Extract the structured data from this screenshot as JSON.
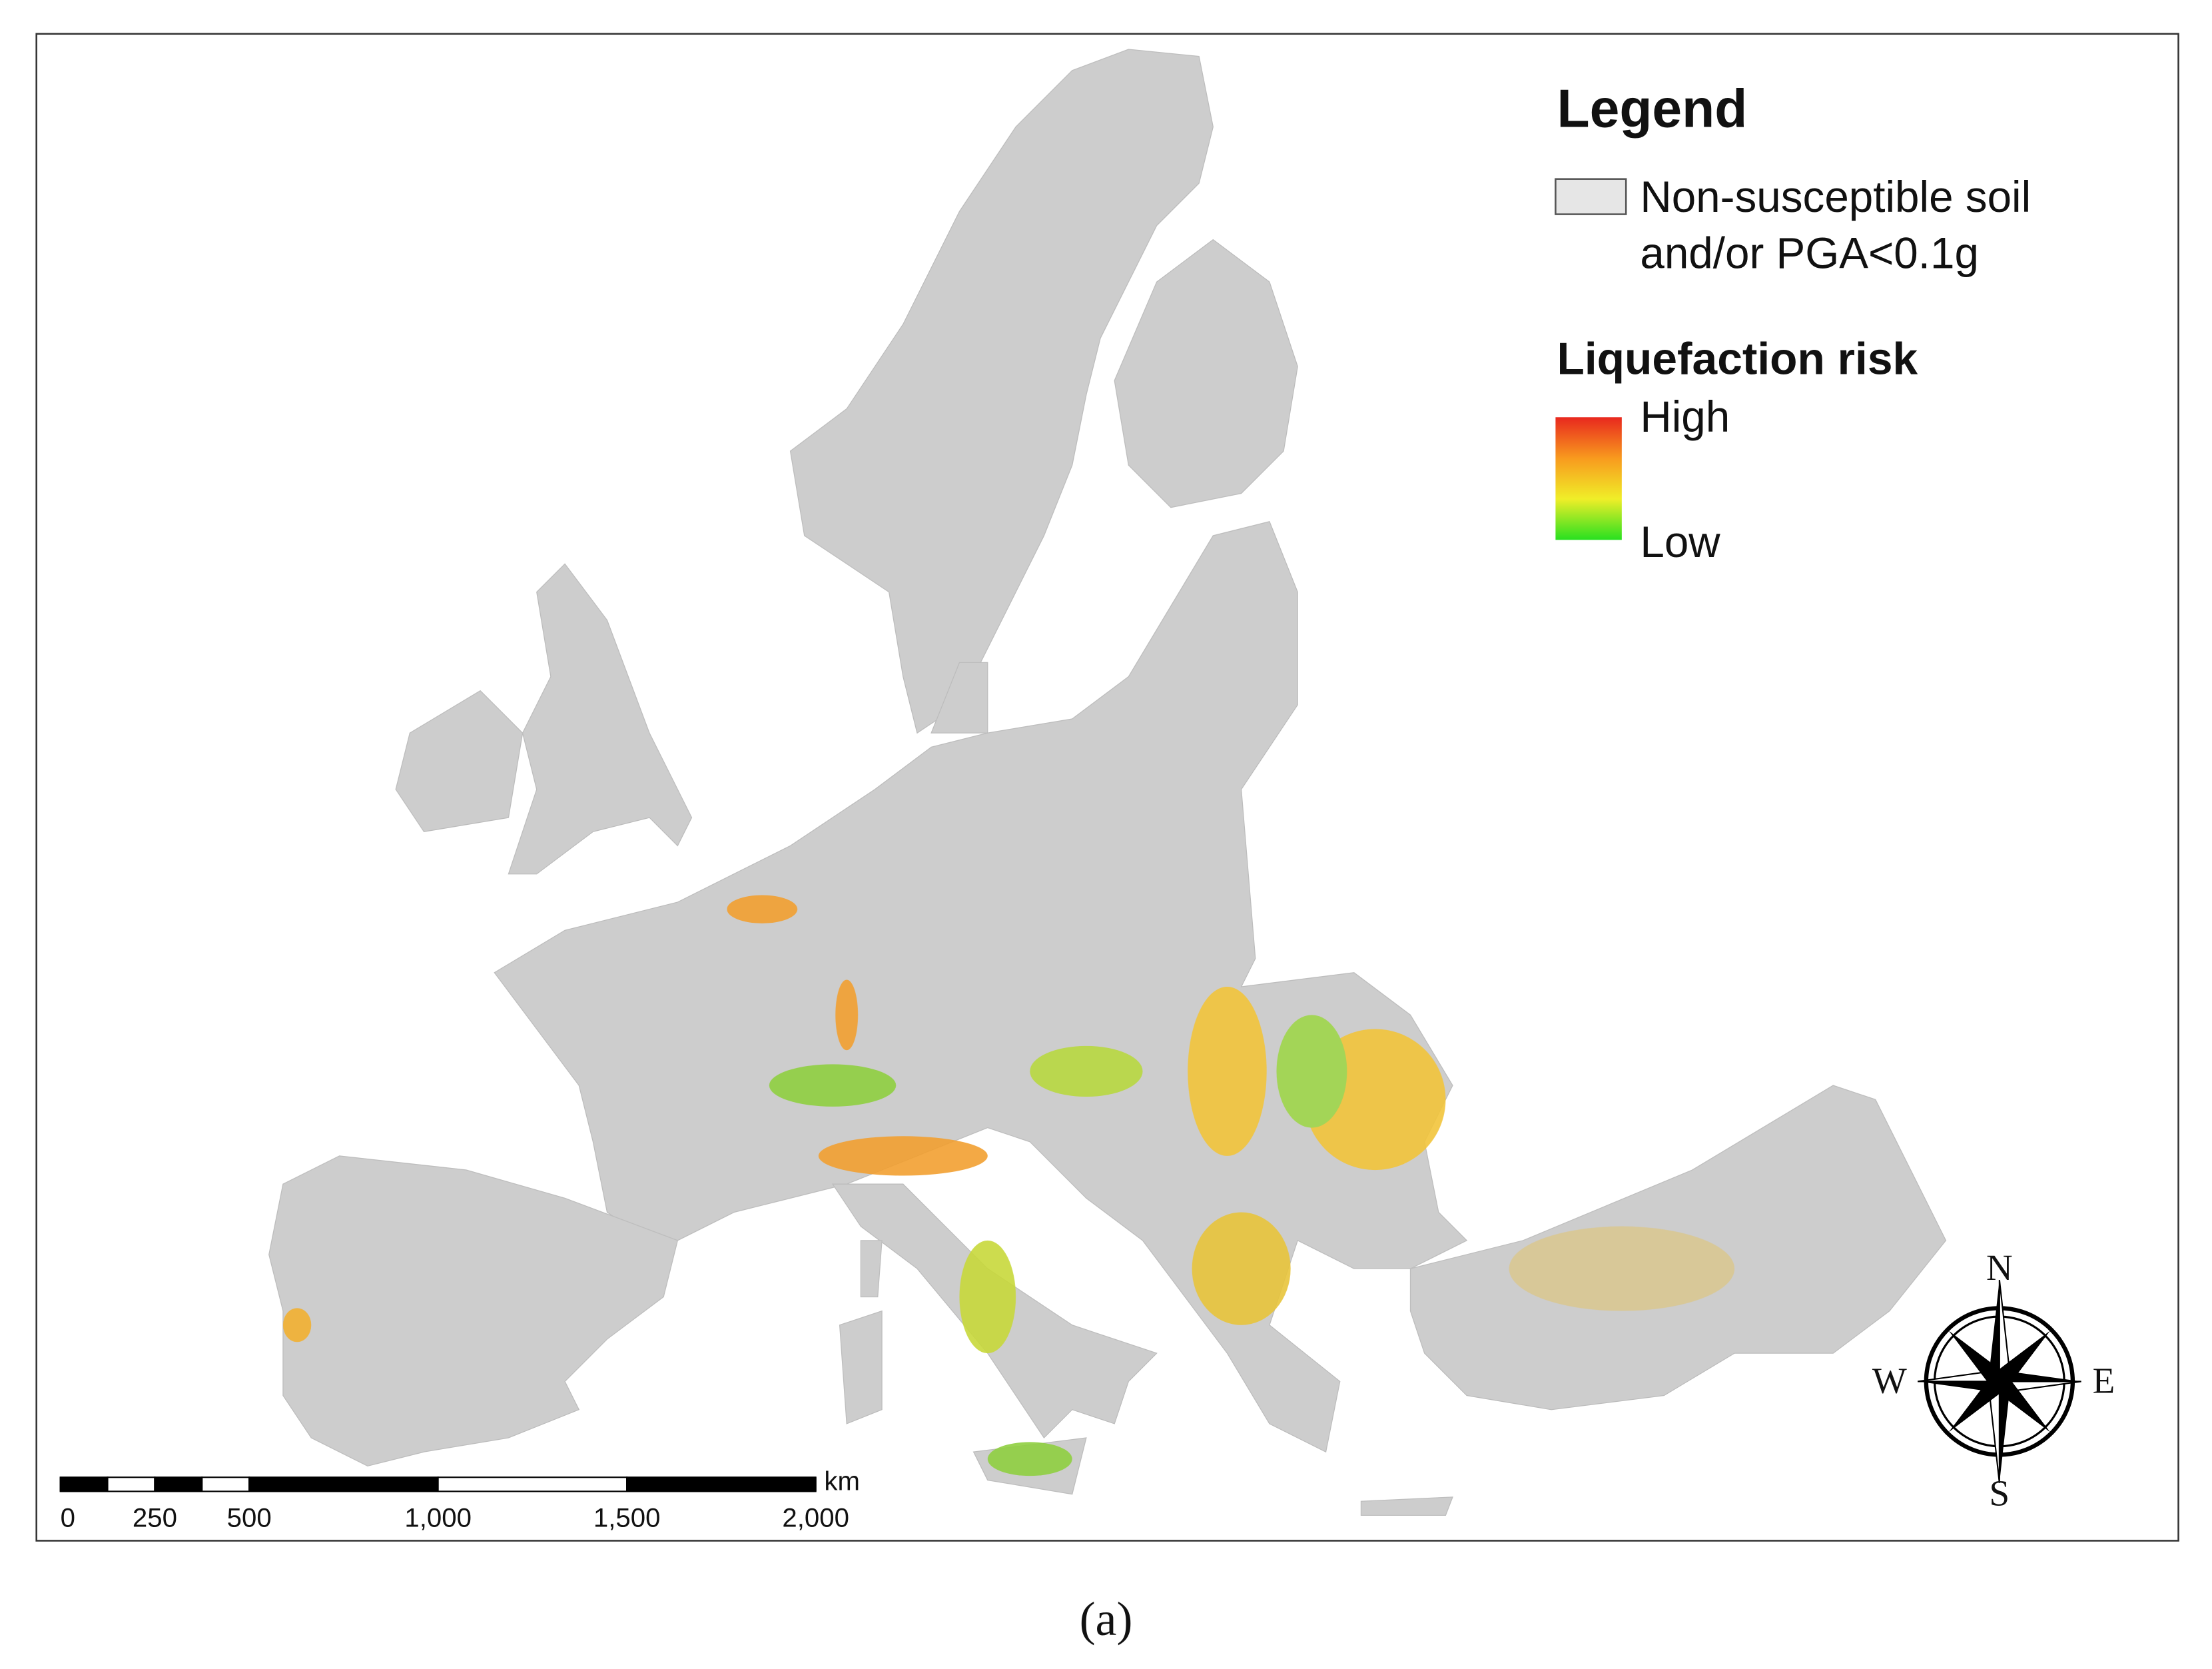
{
  "legend": {
    "title": "Legend",
    "base_lines": [
      "Non-susceptible soil",
      "and/or PGA<0.1g"
    ],
    "base_color": "#e6e6e6",
    "risk_title": "Liquefaction risk",
    "high": "High",
    "low": "Low",
    "risk_colors": [
      "#e8281e",
      "#f89a1e",
      "#f0ee28",
      "#28e020"
    ]
  },
  "scale_bar": {
    "unit": "km",
    "range": [
      0,
      2000
    ],
    "ticks": [
      0,
      250,
      500,
      {
        "value": 1000,
        "label": "1,000"
      },
      {
        "value": 1500,
        "label": "1,500"
      },
      {
        "value": 2000,
        "label": "2,000"
      }
    ]
  },
  "compass": {
    "n": "N",
    "e": "E",
    "s": "S",
    "w": "W"
  },
  "caption": "(a)"
}
